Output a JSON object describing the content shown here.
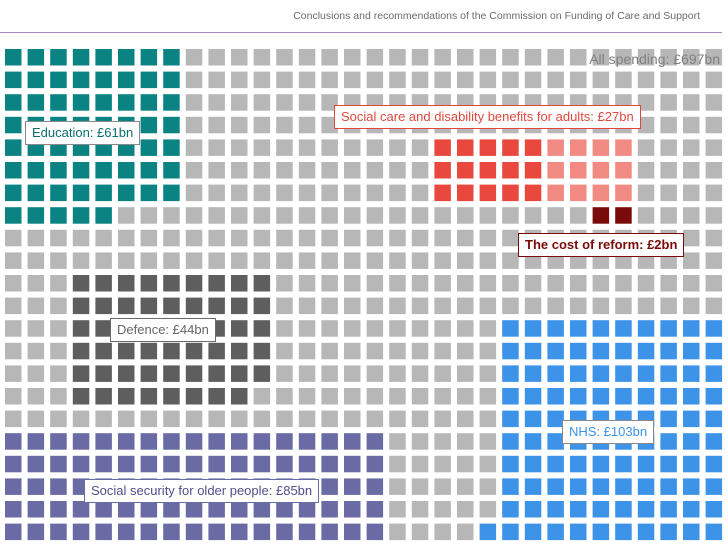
{
  "header": {
    "title": "Conclusions and recommendations of the Commission on Funding of Care and Support"
  },
  "chart_data": {
    "type": "waffle",
    "title": "All spending: £697bn",
    "total_bn": 697,
    "unit": "£bn",
    "background_color": "#b7b7b7",
    "segments": [
      {
        "name": "Education",
        "label": "Education: £61bn",
        "value": 61,
        "color": "#0b8383",
        "label_color": "#0b6e6e",
        "label_border": "#8a8a8a"
      },
      {
        "name": "Social care and disability benefits for adults",
        "label": "Social care and disability benefits for adults: £27bn",
        "value": 27,
        "color": "#e8483d",
        "color_secondary": "#f08a82",
        "label_color": "#e0483e",
        "label_border": "#e0483e"
      },
      {
        "name": "The cost of reform",
        "label": "The cost of reform: £2bn",
        "value": 2,
        "color": "#7a0b0b",
        "label_color": "#7a0b0b",
        "label_border": "#7a0b0b"
      },
      {
        "name": "Defence",
        "label": "Defence: £44bn",
        "value": 44,
        "color": "#5e5e5e",
        "label_color": "#666666",
        "label_border": "#6a6a6a"
      },
      {
        "name": "NHS",
        "label": "NHS: £103bn",
        "value": 103,
        "color": "#3d93e8",
        "label_color": "#3d93e8",
        "label_border": "#8a8a8a"
      },
      {
        "name": "Social security for older people",
        "label": "Social security for older people: £85bn",
        "value": 85,
        "color": "#6a6aa4",
        "label_color": "#4f4f8a",
        "label_border": "#6a6aa4"
      }
    ]
  }
}
